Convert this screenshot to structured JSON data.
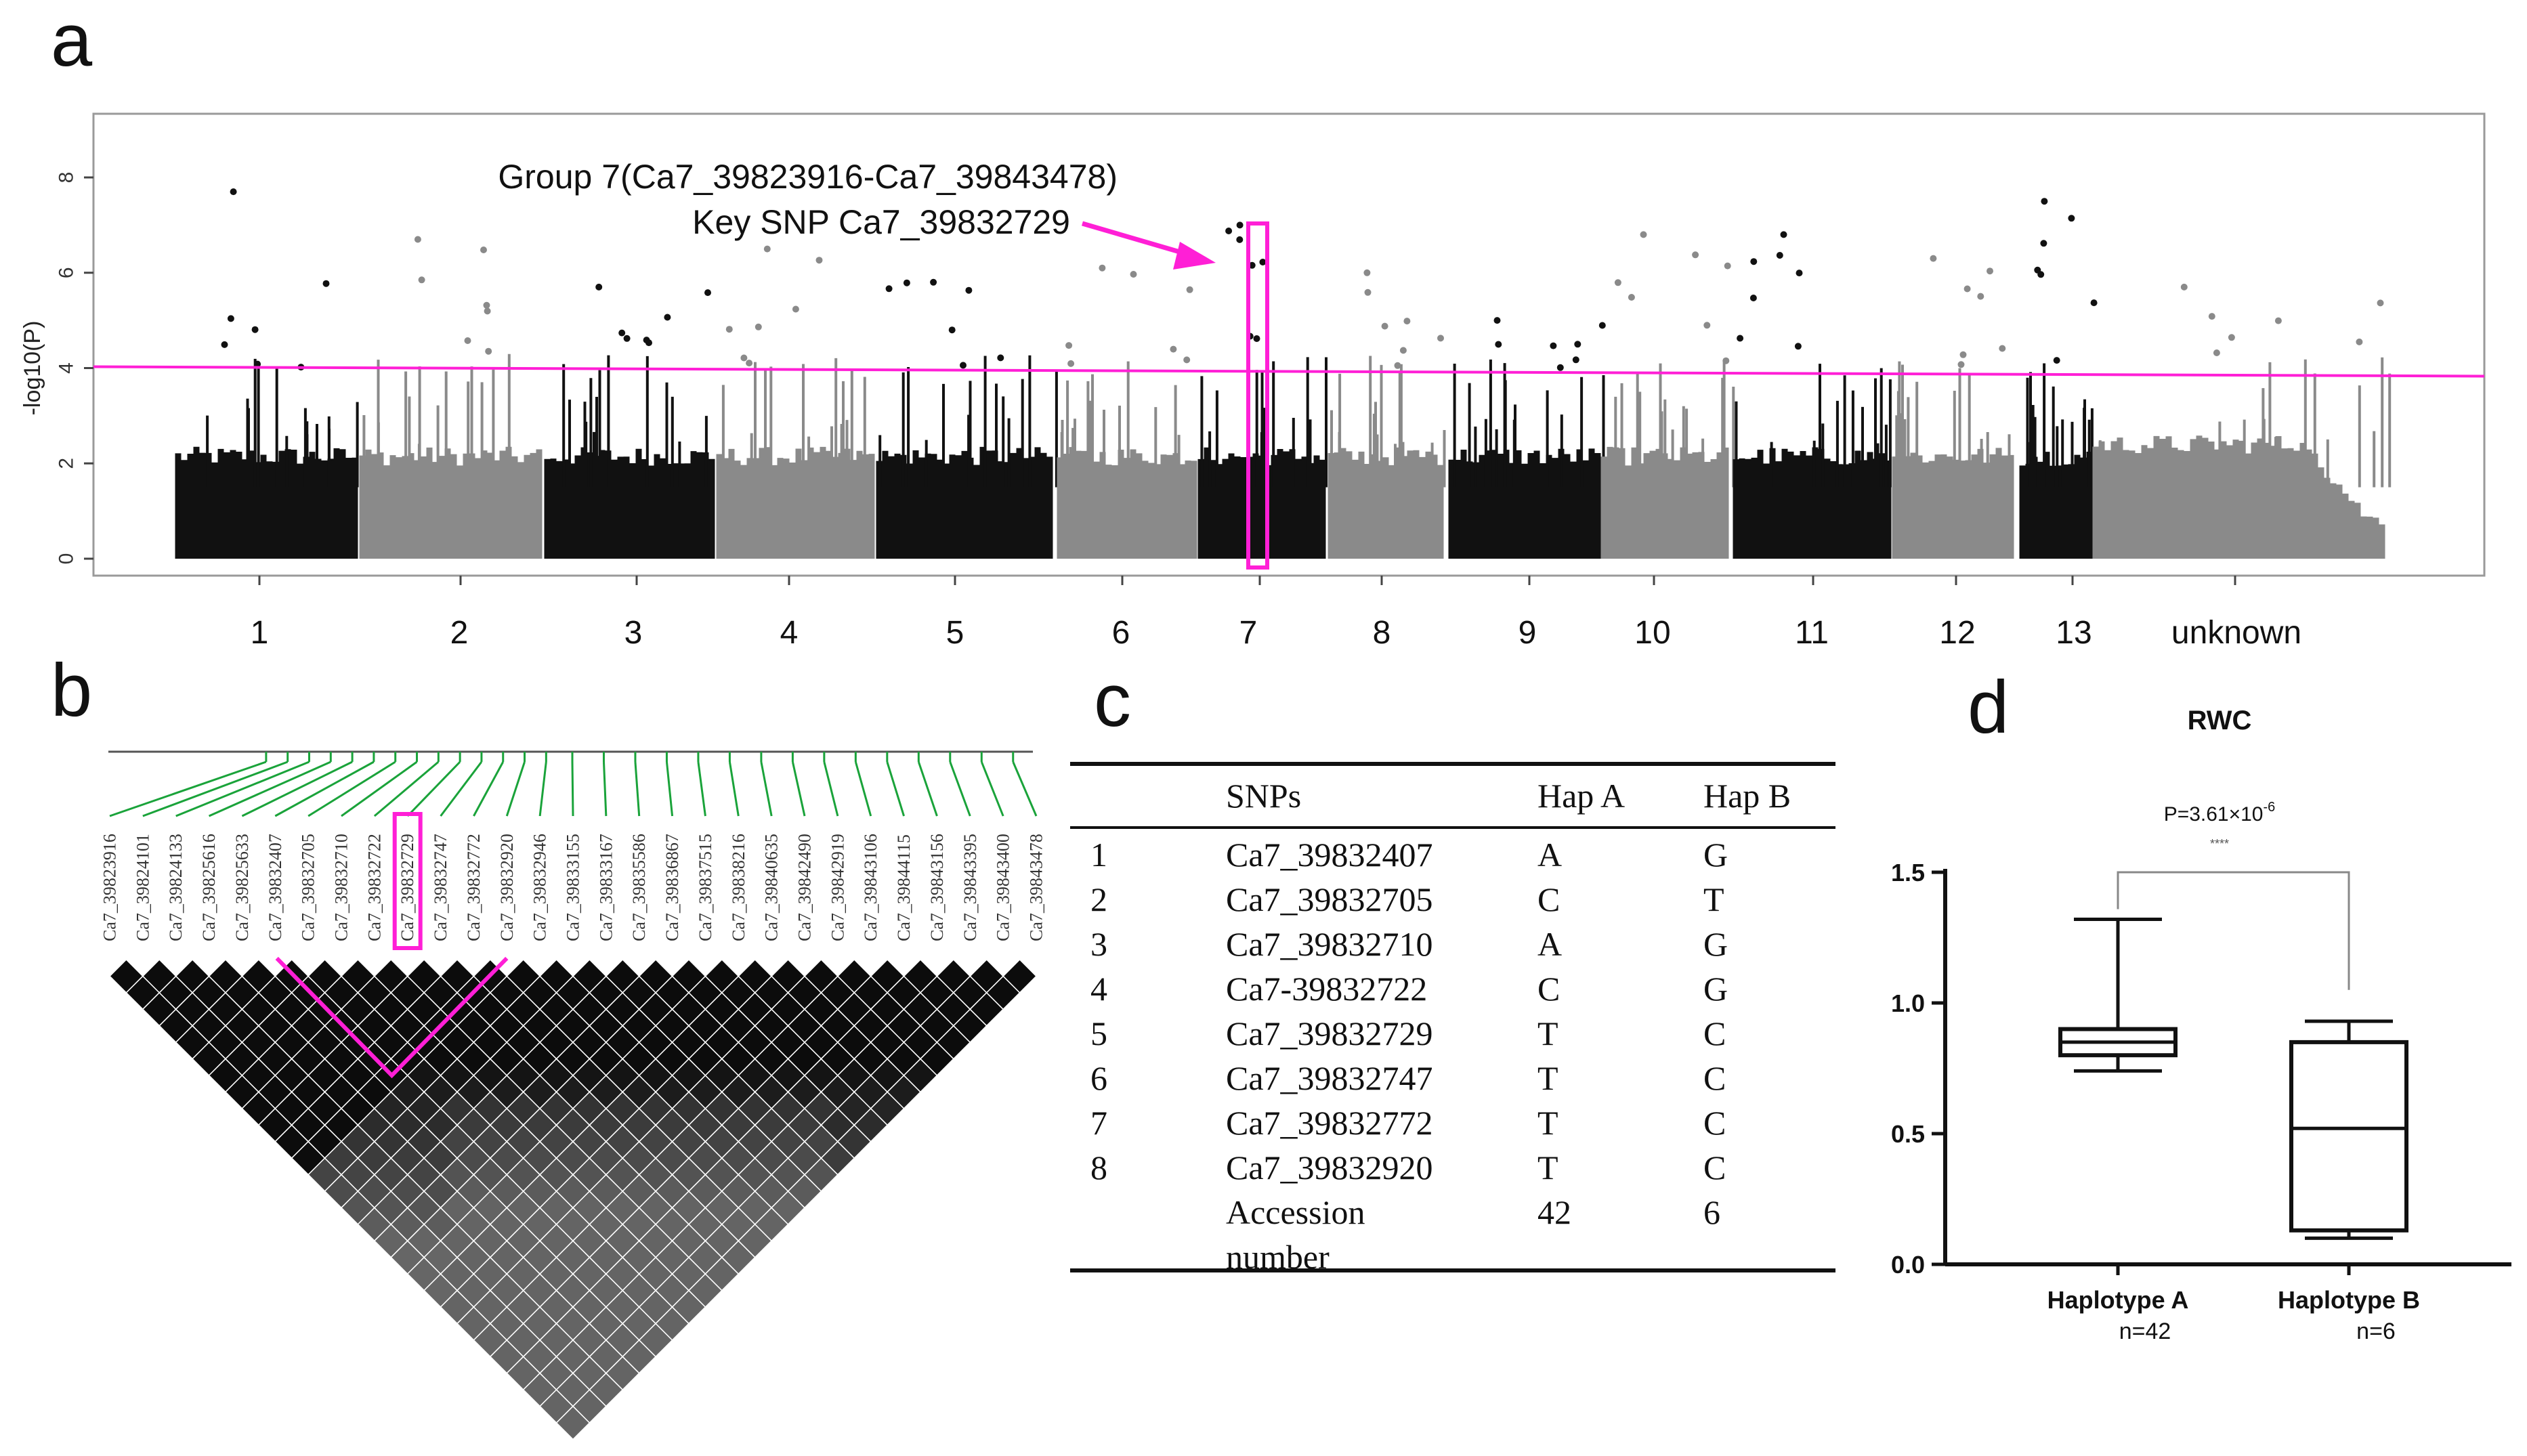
{
  "panels": {
    "a": "a",
    "b": "b",
    "c": "c",
    "d": "d"
  },
  "chart_data": [
    {
      "panel": "a",
      "type": "scatter",
      "title": "",
      "ylabel": "-log10(P)",
      "xlabel": "",
      "ylim": [
        0,
        9
      ],
      "yticks": [
        0,
        2,
        4,
        6,
        8
      ],
      "categories": [
        "1",
        "2",
        "3",
        "4",
        "5",
        "6",
        "7",
        "8",
        "9",
        "10",
        "11",
        "12",
        "13",
        "unknown"
      ],
      "chromosome_colors": [
        "#111111",
        "#8a8a8a"
      ],
      "threshold": 4,
      "threshold_color": "#ff1fd6",
      "highlight_chromosome": "7",
      "annotation_line1": "Group 7(Ca7_39823916-Ca7_39843478)",
      "annotation_line2": "Key SNP Ca7_39832729",
      "peak_values": [
        7.7,
        6.7,
        5.7,
        6.5,
        5.8,
        6.1,
        7.0,
        6.0,
        5.0,
        6.8,
        6.8,
        6.3,
        7.5,
        5.7
      ]
    },
    {
      "panel": "b",
      "type": "heatmap",
      "title": "",
      "snps": [
        "Ca7_39823916",
        "Ca7_39824101",
        "Ca7_39824133",
        "Ca7_39825616",
        "Ca7_39825633",
        "Ca7_39832407",
        "Ca7_39832705",
        "Ca7_39832710",
        "Ca7_39832722",
        "Ca7_39832729",
        "Ca7_39832747",
        "Ca7_39832772",
        "Ca7_39832920",
        "Ca7_39832946",
        "Ca7_39833155",
        "Ca7_39833167",
        "Ca7_39835586",
        "Ca7_39836867",
        "Ca7_39837515",
        "Ca7_39838216",
        "Ca7_39840635",
        "Ca7_39842490",
        "Ca7_39842919",
        "Ca7_39843106",
        "Ca7_39844115",
        "Ca7_39843156",
        "Ca7_39843395",
        "Ca7_39843400",
        "Ca7_39843478"
      ],
      "highlight_snp": "Ca7_39832729",
      "block_start_snp": "Ca7_39832407",
      "block_end_snp": "Ca7_39832920"
    },
    {
      "panel": "d",
      "type": "box",
      "title": "RWC",
      "xlabel": "",
      "ylabel": "",
      "ylim": [
        0,
        1.5
      ],
      "yticks": [
        "0.0",
        "0.5",
        "1.0",
        "1.5"
      ],
      "pvalue": "P=3.61×10",
      "pvalue_exp": "-6",
      "significance": "****",
      "groups": [
        {
          "name": "Haplotype A",
          "n": "n=42",
          "min": 0.74,
          "q1": 0.8,
          "median": 0.85,
          "q3": 0.9,
          "max": 1.32
        },
        {
          "name": "Haplotype B",
          "n": "n=6",
          "min": 0.1,
          "q1": 0.13,
          "median": 0.52,
          "q3": 0.85,
          "max": 0.93
        }
      ]
    }
  ],
  "table": {
    "headers": [
      "",
      "SNPs",
      "Hap A",
      "Hap B"
    ],
    "rows": [
      [
        "1",
        "Ca7_39832407",
        "A",
        "G"
      ],
      [
        "2",
        "Ca7_39832705",
        "C",
        "T"
      ],
      [
        "3",
        "Ca7_39832710",
        "A",
        "G"
      ],
      [
        "4",
        "Ca7-39832722",
        "C",
        "G"
      ],
      [
        "5",
        "Ca7_39832729",
        "T",
        "C"
      ],
      [
        "6",
        "Ca7_39832747",
        "T",
        "C"
      ],
      [
        "7",
        "Ca7_39832772",
        "T",
        "C"
      ],
      [
        "8",
        "Ca7_39832920",
        "T",
        "C"
      ]
    ],
    "accession_label_1": "Accession",
    "accession_label_2": "number",
    "accession_hap_a": "42",
    "accession_hap_b": "6"
  }
}
